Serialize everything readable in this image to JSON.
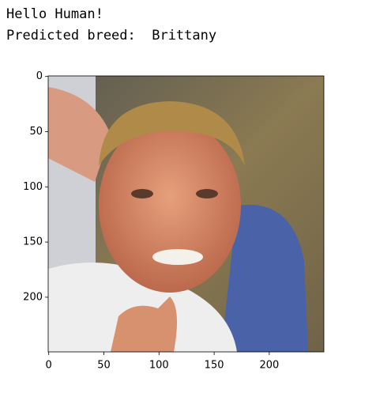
{
  "output_lines": [
    "Hello Human!",
    "Predicted breed:  Brittany"
  ],
  "chart_data": {
    "type": "image",
    "xlim": [
      -0.5,
      249.5
    ],
    "ylim": [
      249.5,
      -0.5
    ],
    "xticks": [
      0,
      50,
      100,
      150,
      200
    ],
    "yticks": [
      0,
      50,
      100,
      150,
      200
    ]
  }
}
